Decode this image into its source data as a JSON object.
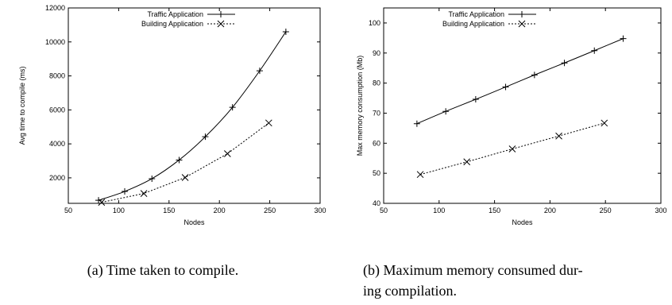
{
  "chart_data": [
    {
      "type": "line",
      "xlabel": "Nodes",
      "ylabel": "Avg time to compile (ms)",
      "xlim": [
        50,
        300
      ],
      "ylim": [
        500,
        12000
      ],
      "xticks": [
        50,
        100,
        150,
        200,
        250,
        300
      ],
      "yticks": [
        2000,
        4000,
        6000,
        8000,
        10000,
        12000
      ],
      "grid": false,
      "legend_position": "top-left",
      "series": [
        {
          "name": "Traffic Application",
          "marker": "plus",
          "dash": "solid",
          "x": [
            80,
            106,
            133,
            160,
            186,
            213,
            240,
            266
          ],
          "y": [
            680,
            1200,
            1950,
            3050,
            4420,
            6150,
            8300,
            10600
          ]
        },
        {
          "name": "Building Application",
          "marker": "cross",
          "dash": "dotted",
          "x": [
            83,
            125,
            166,
            208,
            249
          ],
          "y": [
            560,
            1080,
            2020,
            3420,
            5230
          ]
        }
      ],
      "caption_lines": [
        "(a) Time taken to compile."
      ]
    },
    {
      "type": "line",
      "xlabel": "Nodes",
      "ylabel": "Max memory consumption (Mb)",
      "xlim": [
        50,
        300
      ],
      "ylim": [
        40,
        105
      ],
      "xticks": [
        50,
        100,
        150,
        200,
        250,
        300
      ],
      "yticks": [
        40,
        50,
        60,
        70,
        80,
        90,
        100
      ],
      "grid": false,
      "legend_position": "top-left",
      "series": [
        {
          "name": "Traffic Application",
          "marker": "plus",
          "dash": "solid",
          "x": [
            80,
            106,
            133,
            160,
            186,
            213,
            240,
            266
          ],
          "y": [
            66.5,
            70.6,
            74.6,
            78.7,
            82.7,
            86.7,
            90.8,
            94.8
          ]
        },
        {
          "name": "Building Application",
          "marker": "cross",
          "dash": "dotted",
          "x": [
            83,
            125,
            166,
            208,
            249
          ],
          "y": [
            49.6,
            53.8,
            58.1,
            62.4,
            66.7
          ]
        }
      ],
      "caption_lines": [
        "(b) Maximum memory consumed dur-",
        "ing compilation."
      ]
    }
  ]
}
